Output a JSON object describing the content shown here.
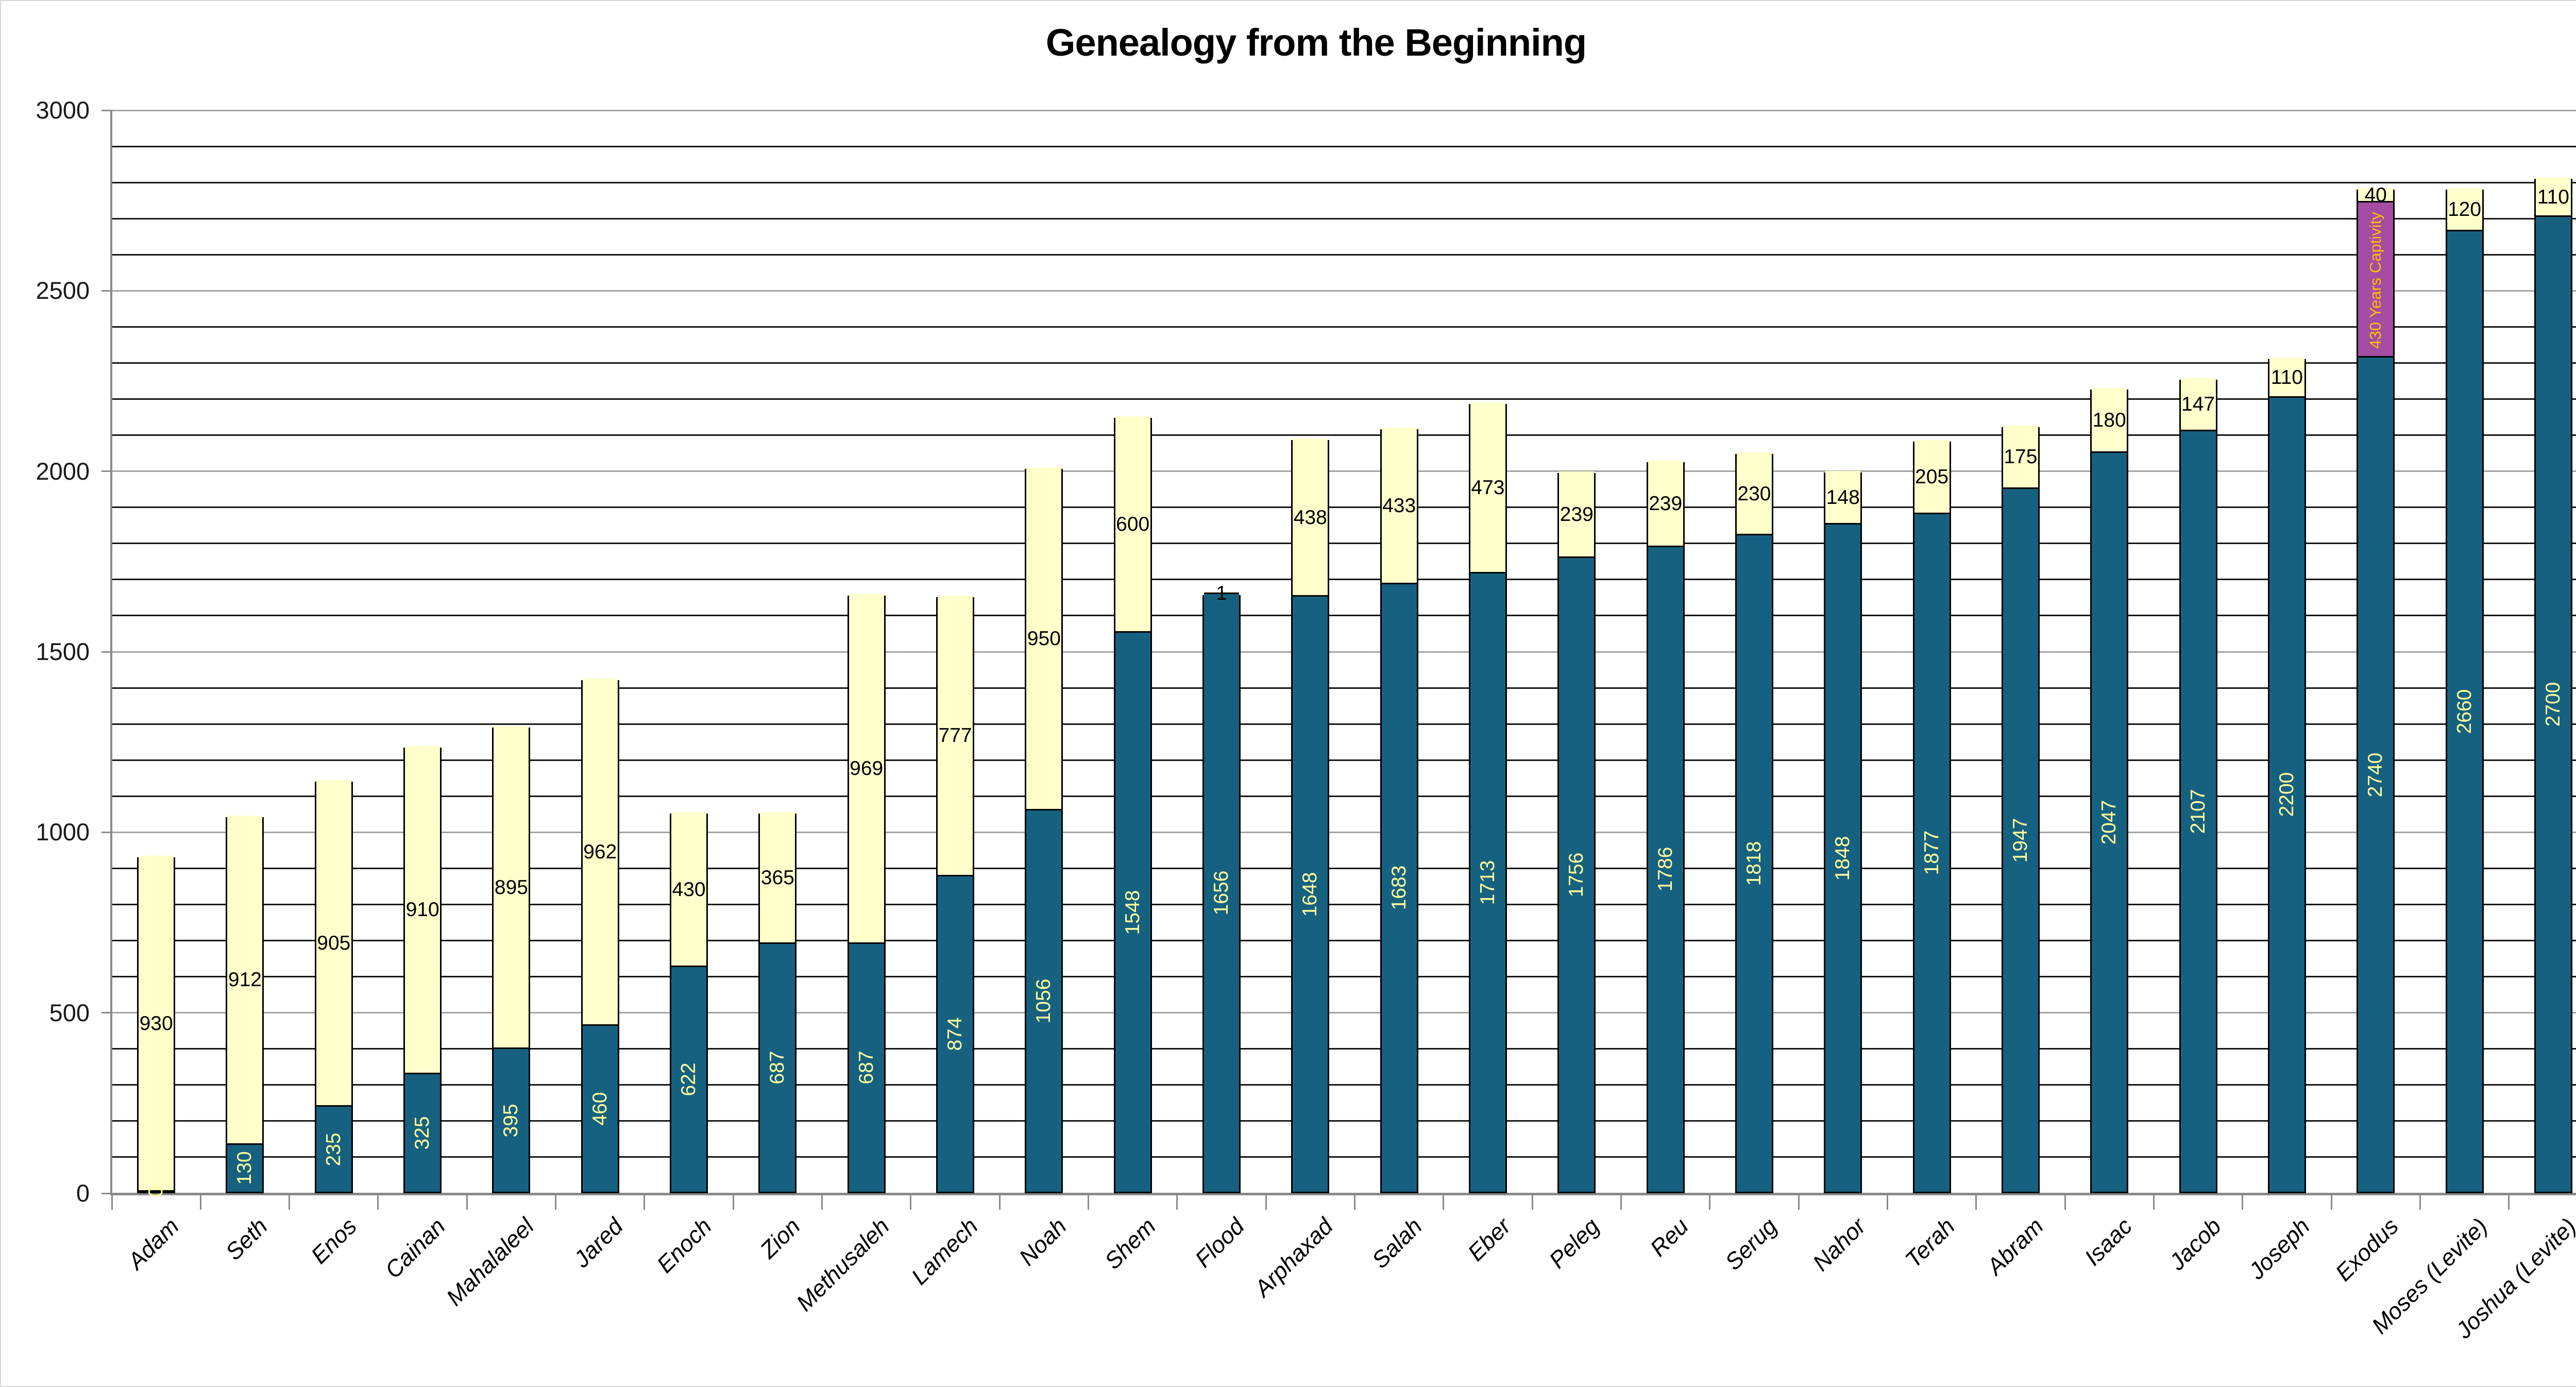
{
  "title": "Genealogy from the Beginning",
  "colors": {
    "background": "#ffffff",
    "teal": "#176180",
    "cream": "#FFFFCC",
    "magenta": "#A44DA3",
    "teal_label": "#FFFF9E",
    "cream_label": "#000000",
    "magenta_label": "#FFC000",
    "grid_minor": "#141414",
    "grid_major": "#A3A3A3",
    "axis": "#8A8A8A",
    "bar_outline": "#000000",
    "title_color": "#000000"
  },
  "y_axis": {
    "min": 0,
    "max": 3000,
    "major_step": 500,
    "minor_step": 100,
    "tick_labels": [
      "0",
      "500",
      "1000",
      "1500",
      "2000",
      "2500",
      "3000"
    ],
    "tick_values": [
      0,
      500,
      1000,
      1500,
      2000,
      2500,
      3000
    ]
  },
  "chart_data": {
    "type": "bar",
    "stacked": true,
    "title": "Genealogy from the Beginning",
    "xlabel": "",
    "ylabel": "",
    "ylim": [
      0,
      3000
    ],
    "grid": "minor black lines every 100, major gray lines every 500",
    "legend_position": "none",
    "categories": [
      "Adam",
      "Seth",
      "Enos",
      "Cainan",
      "Mahalaleel",
      "Jared",
      "Enoch",
      "Zion",
      "Methusaleh",
      "Lamech",
      "Noah",
      "Shem",
      "Flood",
      "Arphaxad",
      "Salah",
      "Eber",
      "Peleg",
      "Reu",
      "Serug",
      "Nahor",
      "Terah",
      "Abram",
      "Isaac",
      "Jacob",
      "Joseph",
      "Exodus",
      "Moses (Levite)",
      "Joshua (Levite)"
    ],
    "series_legend": [
      {
        "key": "birth",
        "color_key": "teal",
        "label_style": "rotated pale yellow"
      },
      {
        "key": "captivity",
        "color_key": "magenta",
        "label_style": "rotated gold"
      },
      {
        "key": "lifespan",
        "color_key": "cream",
        "label_style": "horizontal black"
      }
    ],
    "bars": [
      {
        "name": "Adam",
        "segments": [
          {
            "series": "birth",
            "value": 0,
            "label": "0"
          },
          {
            "series": "lifespan",
            "value": 930,
            "label": "930"
          }
        ]
      },
      {
        "name": "Seth",
        "segments": [
          {
            "series": "birth",
            "value": 130,
            "label": "130"
          },
          {
            "series": "lifespan",
            "value": 912,
            "label": "912"
          }
        ]
      },
      {
        "name": "Enos",
        "segments": [
          {
            "series": "birth",
            "value": 235,
            "label": "235"
          },
          {
            "series": "lifespan",
            "value": 905,
            "label": "905"
          }
        ]
      },
      {
        "name": "Cainan",
        "segments": [
          {
            "series": "birth",
            "value": 325,
            "label": "325"
          },
          {
            "series": "lifespan",
            "value": 910,
            "label": "910"
          }
        ]
      },
      {
        "name": "Mahalaleel",
        "segments": [
          {
            "series": "birth",
            "value": 395,
            "label": "395"
          },
          {
            "series": "lifespan",
            "value": 895,
            "label": "895"
          }
        ]
      },
      {
        "name": "Jared",
        "segments": [
          {
            "series": "birth",
            "value": 460,
            "label": "460"
          },
          {
            "series": "lifespan",
            "value": 962,
            "label": "962"
          }
        ]
      },
      {
        "name": "Enoch",
        "segments": [
          {
            "series": "birth",
            "value": 622,
            "label": "622"
          },
          {
            "series": "lifespan",
            "value": 430,
            "label": "430"
          }
        ]
      },
      {
        "name": "Zion",
        "segments": [
          {
            "series": "birth",
            "value": 687,
            "label": "687"
          },
          {
            "series": "lifespan",
            "value": 365,
            "label": "365"
          }
        ]
      },
      {
        "name": "Methusaleh",
        "segments": [
          {
            "series": "birth",
            "value": 687,
            "label": "687"
          },
          {
            "series": "lifespan",
            "value": 969,
            "label": "969"
          }
        ]
      },
      {
        "name": "Lamech",
        "segments": [
          {
            "series": "birth",
            "value": 874,
            "label": "874"
          },
          {
            "series": "lifespan",
            "value": 777,
            "label": "777"
          }
        ]
      },
      {
        "name": "Noah",
        "segments": [
          {
            "series": "birth",
            "value": 1056,
            "label": "1056"
          },
          {
            "series": "lifespan",
            "value": 950,
            "label": "950"
          }
        ]
      },
      {
        "name": "Shem",
        "segments": [
          {
            "series": "birth",
            "value": 1548,
            "label": "1548"
          },
          {
            "series": "lifespan",
            "value": 600,
            "label": "600"
          }
        ]
      },
      {
        "name": "Flood",
        "segments": [
          {
            "series": "birth",
            "value": 1656,
            "label": "1656"
          },
          {
            "series": "lifespan",
            "value": 1,
            "label": "1"
          }
        ]
      },
      {
        "name": "Arphaxad",
        "segments": [
          {
            "series": "birth",
            "value": 1648,
            "label": "1648"
          },
          {
            "series": "lifespan",
            "value": 438,
            "label": "438"
          }
        ]
      },
      {
        "name": "Salah",
        "segments": [
          {
            "series": "birth",
            "value": 1683,
            "label": "1683"
          },
          {
            "series": "lifespan",
            "value": 433,
            "label": "433"
          }
        ]
      },
      {
        "name": "Eber",
        "segments": [
          {
            "series": "birth",
            "value": 1713,
            "label": "1713"
          },
          {
            "series": "lifespan",
            "value": 473,
            "label": "473"
          }
        ]
      },
      {
        "name": "Peleg",
        "segments": [
          {
            "series": "birth",
            "value": 1756,
            "label": "1756"
          },
          {
            "series": "lifespan",
            "value": 239,
            "label": "239"
          }
        ]
      },
      {
        "name": "Reu",
        "segments": [
          {
            "series": "birth",
            "value": 1786,
            "label": "1786"
          },
          {
            "series": "lifespan",
            "value": 239,
            "label": "239"
          }
        ]
      },
      {
        "name": "Serug",
        "segments": [
          {
            "series": "birth",
            "value": 1818,
            "label": "1818"
          },
          {
            "series": "lifespan",
            "value": 230,
            "label": "230"
          }
        ]
      },
      {
        "name": "Nahor",
        "segments": [
          {
            "series": "birth",
            "value": 1848,
            "label": "1848"
          },
          {
            "series": "lifespan",
            "value": 148,
            "label": "148"
          }
        ]
      },
      {
        "name": "Terah",
        "segments": [
          {
            "series": "birth",
            "value": 1877,
            "label": "1877"
          },
          {
            "series": "lifespan",
            "value": 205,
            "label": "205"
          }
        ]
      },
      {
        "name": "Abram",
        "segments": [
          {
            "series": "birth",
            "value": 1947,
            "label": "1947"
          },
          {
            "series": "lifespan",
            "value": 175,
            "label": "175"
          }
        ]
      },
      {
        "name": "Isaac",
        "segments": [
          {
            "series": "birth",
            "value": 2047,
            "label": "2047"
          },
          {
            "series": "lifespan",
            "value": 180,
            "label": "180"
          }
        ]
      },
      {
        "name": "Jacob",
        "segments": [
          {
            "series": "birth",
            "value": 2107,
            "label": "2107"
          },
          {
            "series": "lifespan",
            "value": 147,
            "label": "147"
          }
        ]
      },
      {
        "name": "Joseph",
        "segments": [
          {
            "series": "birth",
            "value": 2200,
            "label": "2200"
          },
          {
            "series": "lifespan",
            "value": 110,
            "label": "110"
          }
        ]
      },
      {
        "name": "Exodus",
        "segments": [
          {
            "series": "birth",
            "value": 2310,
            "label": "2740"
          },
          {
            "series": "captivity",
            "value": 430,
            "label": "430 Years Captivity"
          },
          {
            "series": "lifespan",
            "value": 40,
            "label": "40"
          }
        ]
      },
      {
        "name": "Moses (Levite)",
        "segments": [
          {
            "series": "birth",
            "value": 2660,
            "label": "2660"
          },
          {
            "series": "lifespan",
            "value": 120,
            "label": "120"
          }
        ]
      },
      {
        "name": "Joshua (Levite)",
        "segments": [
          {
            "series": "birth",
            "value": 2700,
            "label": "2700"
          },
          {
            "series": "lifespan",
            "value": 110,
            "label": "110"
          }
        ]
      }
    ]
  }
}
